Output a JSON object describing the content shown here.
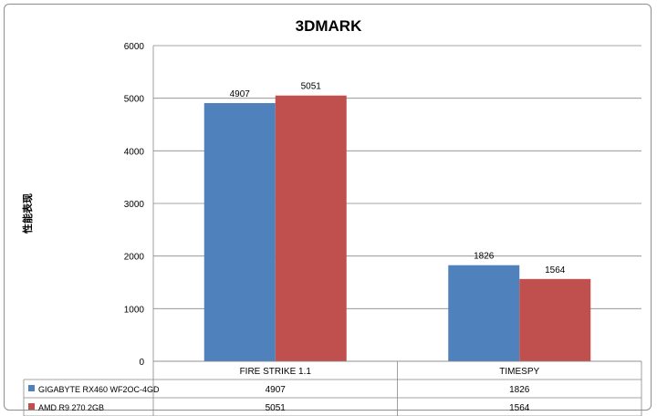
{
  "chart_data": {
    "type": "bar",
    "title": "3DMARK",
    "ylabel": "性能表现",
    "xlabel": "",
    "categories": [
      "FIRE STRIKE 1.1",
      "TIMESPY"
    ],
    "series": [
      {
        "name": "GIGABYTE RX460 WF2OC-4GD",
        "values": [
          4907,
          1826
        ],
        "color": "#4f81bd"
      },
      {
        "name": "AMD R9 270 2GB",
        "values": [
          5051,
          1564
        ],
        "color": "#c0504d"
      }
    ],
    "ylim": [
      0,
      6000
    ],
    "yticks": [
      0,
      1000,
      2000,
      3000,
      4000,
      5000,
      6000
    ],
    "grid": true,
    "legend": "data-table"
  }
}
